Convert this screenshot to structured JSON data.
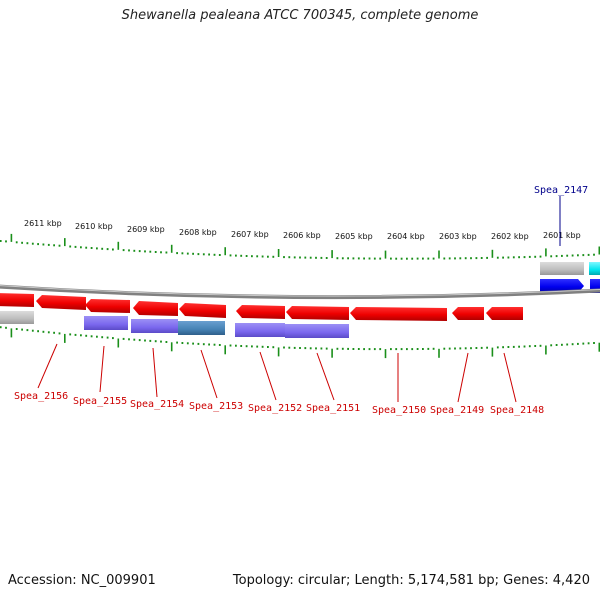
{
  "title": "Shewanella pealeana ATCC 700345, complete genome",
  "footer": {
    "accession": "Accession: NC_009901",
    "summary": "Topology: circular; Length: 5,174,581 bp; Genes: 4,420"
  },
  "kbp_labels": [
    "2611 kbp",
    "2610 kbp",
    "2609 kbp",
    "2608 kbp",
    "2607 kbp",
    "2606 kbp",
    "2605 kbp",
    "2604 kbp",
    "2603 kbp",
    "2602 kbp",
    "2601 kbp"
  ],
  "gene_labels_bottom": [
    "Spea_2156",
    "Spea_2155",
    "Spea_2154",
    "Spea_2153",
    "Spea_2152",
    "Spea_2151",
    "Spea_2150",
    "Spea_2149",
    "Spea_2148"
  ],
  "gene_label_top": "Spea_2147",
  "colors": {
    "forward_cds": "#0000ee",
    "reverse_cds": "#ee0000",
    "cog_purple": "#7b68ee",
    "cog_steel": "#4682b4",
    "cog_gray": "#bdbdbd",
    "cog_cyan": "#00e5ee",
    "tick_green": "#1a8f1a",
    "backbone": "#808080"
  }
}
